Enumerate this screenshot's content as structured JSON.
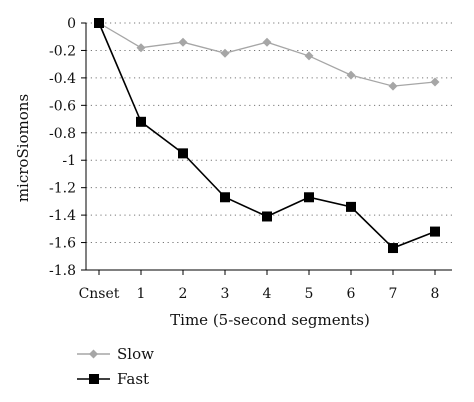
{
  "chart_data": {
    "type": "line",
    "categories": [
      "Cnset",
      "1",
      "2",
      "3",
      "4",
      "5",
      "6",
      "7",
      "8"
    ],
    "series": [
      {
        "name": "Slow",
        "values": [
          0,
          -0.18,
          -0.14,
          -0.22,
          -0.14,
          -0.24,
          -0.38,
          -0.46,
          -0.43
        ],
        "color": "#a6a6a6",
        "marker": "diamond"
      },
      {
        "name": "Fast",
        "values": [
          0,
          -0.72,
          -0.95,
          -1.27,
          -1.41,
          -1.27,
          -1.34,
          -1.64,
          -1.52
        ],
        "color": "#000000",
        "marker": "square"
      }
    ],
    "xlabel": "Time (5-second segments)",
    "ylabel": "microSiomons",
    "ylim": [
      -1.8,
      0
    ],
    "yticks": [
      0,
      -0.2,
      -0.4,
      -0.6,
      -0.8,
      -1,
      -1.2,
      -1.4,
      -1.6,
      -1.8
    ],
    "ytick_labels": [
      "0",
      "-0.2",
      "-0.4",
      "-0.6",
      "-0.8",
      "-1",
      "-1.2",
      "-1.4",
      "-1.6",
      "-1.8"
    ],
    "grid": "horizontal-dotted",
    "legend_position": "bottom-left"
  }
}
